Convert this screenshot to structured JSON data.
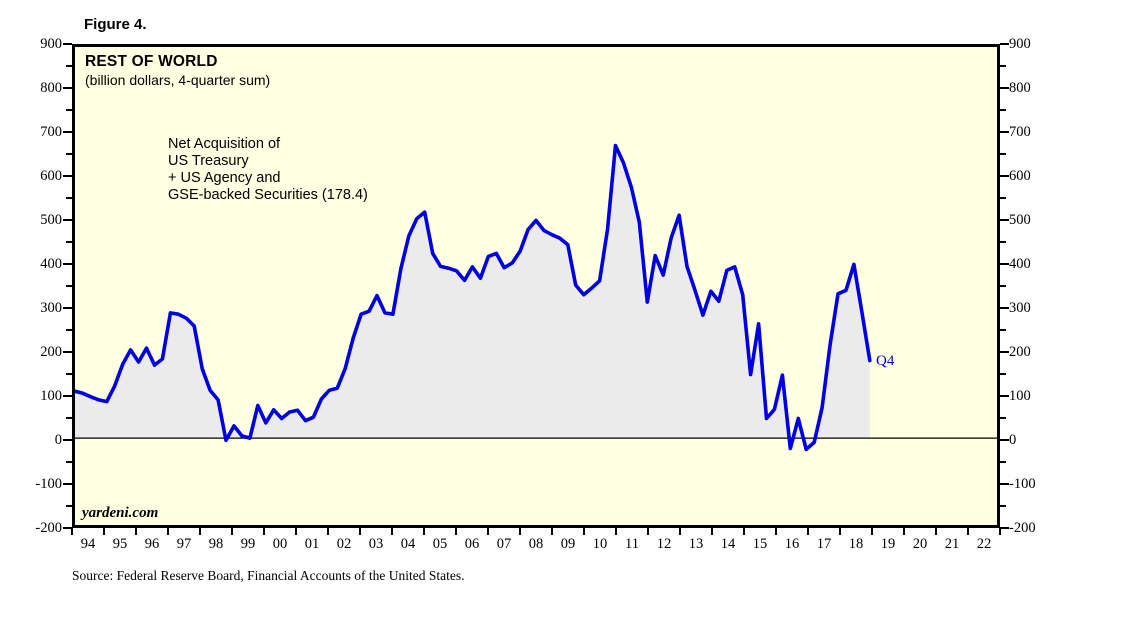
{
  "figure": {
    "label": "Figure 4."
  },
  "chart": {
    "title": "REST OF WORLD",
    "subtitle": "(billion dollars, 4-quarter sum)",
    "annotation_lines": [
      "Net Acquisition of",
      "US Treasury",
      "+ US Agency and",
      "GSE-backed Securities (178.4)"
    ],
    "watermark": "yardeni.com",
    "latest_label": "Q4",
    "colors": {
      "plot_background": "#FFFFE1",
      "area_fill": "#EBEBEB",
      "line": "#0000E0",
      "frame": "#000000",
      "latest_label_color": "#0000CC"
    }
  },
  "source": "Source: Federal Reserve Board, Financial Accounts of the United States.",
  "chart_data": {
    "type": "area",
    "title": "REST OF WORLD",
    "subtitle": "(billion dollars, 4-quarter sum)",
    "series_name": "Net Acquisition of US Treasury + US Agency and GSE-backed Securities",
    "frequency": "quarterly",
    "start_period": "1993Q4",
    "end_period": "2018Q4",
    "last_point": {
      "period": "Q4",
      "value": 178.4
    },
    "x_axis": {
      "tick_labels": [
        "94",
        "95",
        "96",
        "97",
        "98",
        "99",
        "00",
        "01",
        "02",
        "03",
        "04",
        "05",
        "06",
        "07",
        "08",
        "09",
        "10",
        "11",
        "12",
        "13",
        "14",
        "15",
        "16",
        "17",
        "18",
        "19",
        "20",
        "21",
        "22"
      ]
    },
    "y_axis": {
      "min": -200,
      "max": 900,
      "major_tick": 100,
      "minor_tick": 50
    },
    "grid": false,
    "values": [
      108,
      103,
      95,
      88,
      84,
      120,
      170,
      203,
      175,
      207,
      168,
      182,
      288,
      285,
      276,
      258,
      160,
      110,
      88,
      -5,
      28,
      5,
      0,
      75,
      35,
      65,
      45,
      60,
      64,
      40,
      48,
      90,
      110,
      115,
      160,
      230,
      285,
      292,
      328,
      288,
      285,
      390,
      465,
      505,
      520,
      425,
      395,
      391,
      385,
      363,
      394,
      368,
      418,
      425,
      392,
      403,
      430,
      480,
      501,
      478,
      468,
      460,
      445,
      352,
      330,
      345,
      362,
      480,
      673,
      634,
      577,
      497,
      313,
      420,
      375,
      460,
      513,
      395,
      340,
      283,
      338,
      315,
      386,
      394,
      330,
      146,
      263,
      45,
      66,
      145,
      -24,
      45,
      -26,
      -10,
      70,
      215,
      332,
      340,
      400,
      290,
      178.4
    ]
  }
}
